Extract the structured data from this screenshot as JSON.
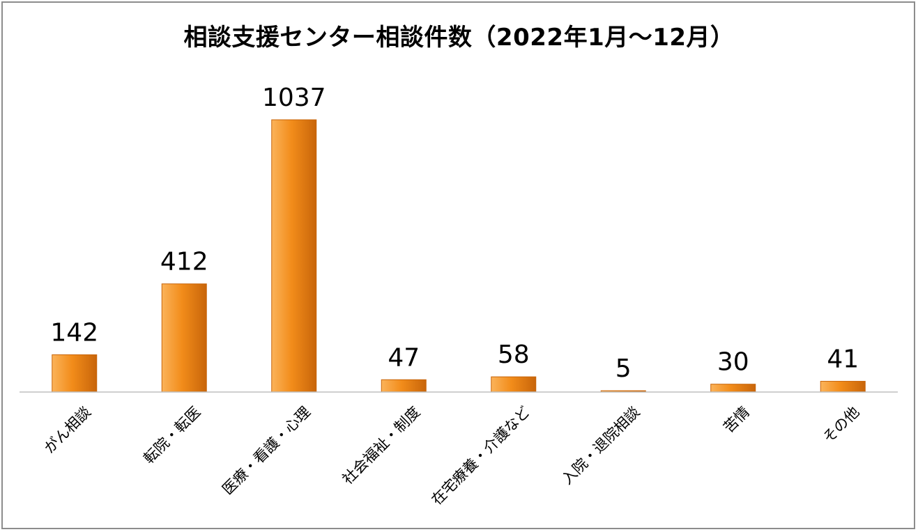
{
  "chart_data": {
    "type": "bar",
    "title": "相談支援センター相談件数（2022年1月～12月）",
    "categories": [
      "がん相談",
      "転院・転医",
      "医療・看護・心理",
      "社会福祉・制度",
      "在宅療養・介護など",
      "入院・退院相談",
      "苦情",
      "その他"
    ],
    "values": [
      142,
      412,
      1037,
      47,
      58,
      5,
      30,
      41
    ],
    "ylim": [
      0,
      1037
    ],
    "grid": false,
    "legend": "none",
    "colors": {
      "bar_light": "#fbb35a",
      "bar_mid": "#f28c1a",
      "bar_dark": "#c8650a",
      "axis": "#bfbfbf",
      "text": "#000000",
      "frame": "#8c8c8c"
    }
  }
}
